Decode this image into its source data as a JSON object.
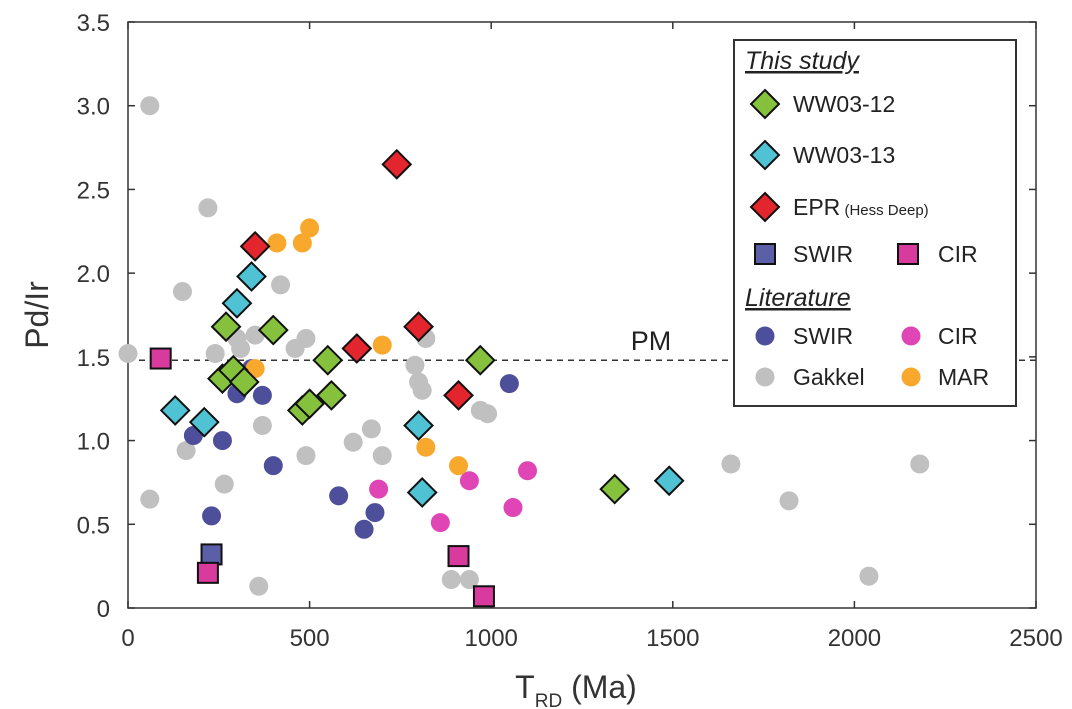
{
  "chart_data": {
    "type": "scatter",
    "title": "",
    "xlabel": "T",
    "xlabel_sub": "RD",
    "xlabel_unit": "(Ma)",
    "ylabel": "Pd/Ir",
    "xlim": [
      0,
      2500
    ],
    "ylim": [
      0,
      3.5
    ],
    "xticks": [
      0,
      500,
      1000,
      1500,
      2000,
      2500
    ],
    "xtick_labels": [
      "0",
      "500",
      "1000",
      "1500",
      "2000",
      "2500"
    ],
    "yticks": [
      0,
      0.5,
      1.0,
      1.5,
      2.0,
      2.5,
      3.0,
      3.5
    ],
    "ytick_labels": [
      "0",
      "0.5",
      "1.0",
      "1.5",
      "2.0",
      "2.5",
      "3.0",
      "3.5"
    ],
    "grid": false,
    "legend_position": "top-right",
    "reference_line": {
      "label": "PM",
      "y": 1.48,
      "style": "dashed"
    },
    "legend": {
      "heading_study": "This study",
      "heading_literature": "Literature",
      "entries": {
        "ww0312": "WW03-12",
        "ww0313": "WW03-13",
        "epr": "EPR",
        "epr_note": "(Hess Deep)",
        "swir_sq": "SWIR",
        "cir_sq": "CIR",
        "swir_lit": "SWIR",
        "cir_lit": "CIR",
        "gakkel": "Gakkel",
        "mar": "MAR"
      }
    },
    "series": [
      {
        "key": "gakkel",
        "name": "Gakkel",
        "marker": "circle",
        "color": "#c0c0c0",
        "stroke": "none",
        "x": [
          60,
          0,
          60,
          150,
          160,
          220,
          240,
          265,
          270,
          300,
          310,
          350,
          360,
          370,
          420,
          460,
          490,
          490,
          620,
          670,
          700,
          790,
          800,
          810,
          820,
          890,
          940,
          970,
          990,
          1660,
          1820,
          2040,
          2180
        ],
        "y": [
          3.0,
          1.52,
          0.65,
          1.89,
          0.94,
          2.39,
          1.52,
          0.74,
          1.37,
          1.61,
          1.55,
          1.63,
          0.13,
          1.09,
          1.93,
          1.55,
          1.61,
          0.91,
          0.99,
          1.07,
          0.91,
          1.45,
          1.35,
          1.3,
          1.61,
          0.17,
          0.17,
          1.18,
          1.16,
          0.86,
          0.64,
          0.19,
          0.86
        ]
      },
      {
        "key": "swir_lit",
        "name": "SWIR",
        "marker": "circle",
        "color": "#4e4f9b",
        "stroke": "none",
        "x": [
          180,
          230,
          260,
          300,
          340,
          370,
          400,
          580,
          650,
          680,
          1050
        ],
        "y": [
          1.03,
          0.55,
          1.0,
          1.28,
          1.43,
          1.27,
          0.85,
          0.67,
          0.47,
          0.57,
          1.34
        ]
      },
      {
        "key": "cir_lit",
        "name": "CIR",
        "marker": "circle",
        "color": "#df45b4",
        "stroke": "none",
        "x": [
          690,
          860,
          940,
          1060,
          1100
        ],
        "y": [
          0.71,
          0.51,
          0.76,
          0.6,
          0.82
        ]
      },
      {
        "key": "mar",
        "name": "MAR",
        "marker": "circle",
        "color": "#f9a82e",
        "stroke": "none",
        "x": [
          350,
          410,
          480,
          500,
          700,
          820,
          910
        ],
        "y": [
          1.43,
          2.18,
          2.18,
          2.27,
          1.57,
          0.96,
          0.85
        ]
      },
      {
        "key": "swir_sq",
        "name": "SWIR",
        "marker": "square",
        "color": "#5a5fa8",
        "stroke": "#111111",
        "x": [
          230
        ],
        "y": [
          0.32
        ]
      },
      {
        "key": "cir_sq",
        "name": "CIR",
        "marker": "square",
        "color": "#d93a9e",
        "stroke": "#111111",
        "x": [
          90,
          220,
          910,
          980
        ],
        "y": [
          1.49,
          0.21,
          0.31,
          0.07
        ]
      },
      {
        "key": "ww0312",
        "name": "WW03-12",
        "marker": "diamond",
        "color": "#86c13e",
        "stroke": "#111111",
        "x": [
          270,
          260,
          290,
          320,
          400,
          480,
          500,
          550,
          560,
          970,
          1340
        ],
        "y": [
          1.68,
          1.37,
          1.42,
          1.35,
          1.66,
          1.18,
          1.22,
          1.48,
          1.27,
          1.48,
          0.71
        ]
      },
      {
        "key": "ww0313",
        "name": "WW03-13",
        "marker": "diamond",
        "color": "#4fc3d4",
        "stroke": "#111111",
        "x": [
          130,
          210,
          300,
          340,
          800,
          810,
          1490
        ],
        "y": [
          1.18,
          1.11,
          1.82,
          1.98,
          1.09,
          0.69,
          0.76
        ]
      },
      {
        "key": "epr",
        "name": "EPR",
        "marker": "diamond",
        "color": "#e3262e",
        "stroke": "#111111",
        "x": [
          350,
          630,
          740,
          800,
          910
        ],
        "y": [
          2.16,
          1.55,
          2.65,
          1.68,
          1.27
        ]
      }
    ]
  }
}
